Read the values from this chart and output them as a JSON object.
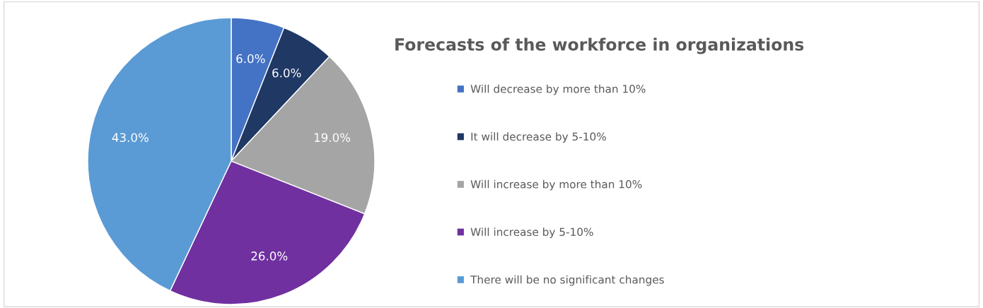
{
  "chart_data": {
    "type": "pie",
    "title": "Forecasts of the workforce in organizations",
    "categories": [
      "Will decrease by more than 10%",
      "It will decrease by 5-10%",
      "Will increase by more than 10%",
      "Will increase by 5-10%",
      "There will be no significant changes"
    ],
    "values": [
      6,
      6,
      19,
      26,
      43
    ],
    "colors": [
      "#4472c4",
      "#1f3864",
      "#a5a5a5",
      "#7030a0",
      "#5b9bd5"
    ],
    "value_labels": [
      "6.0%",
      "6.0%",
      "19.0%",
      "26.0%",
      "43.0%"
    ],
    "legend": "right"
  }
}
